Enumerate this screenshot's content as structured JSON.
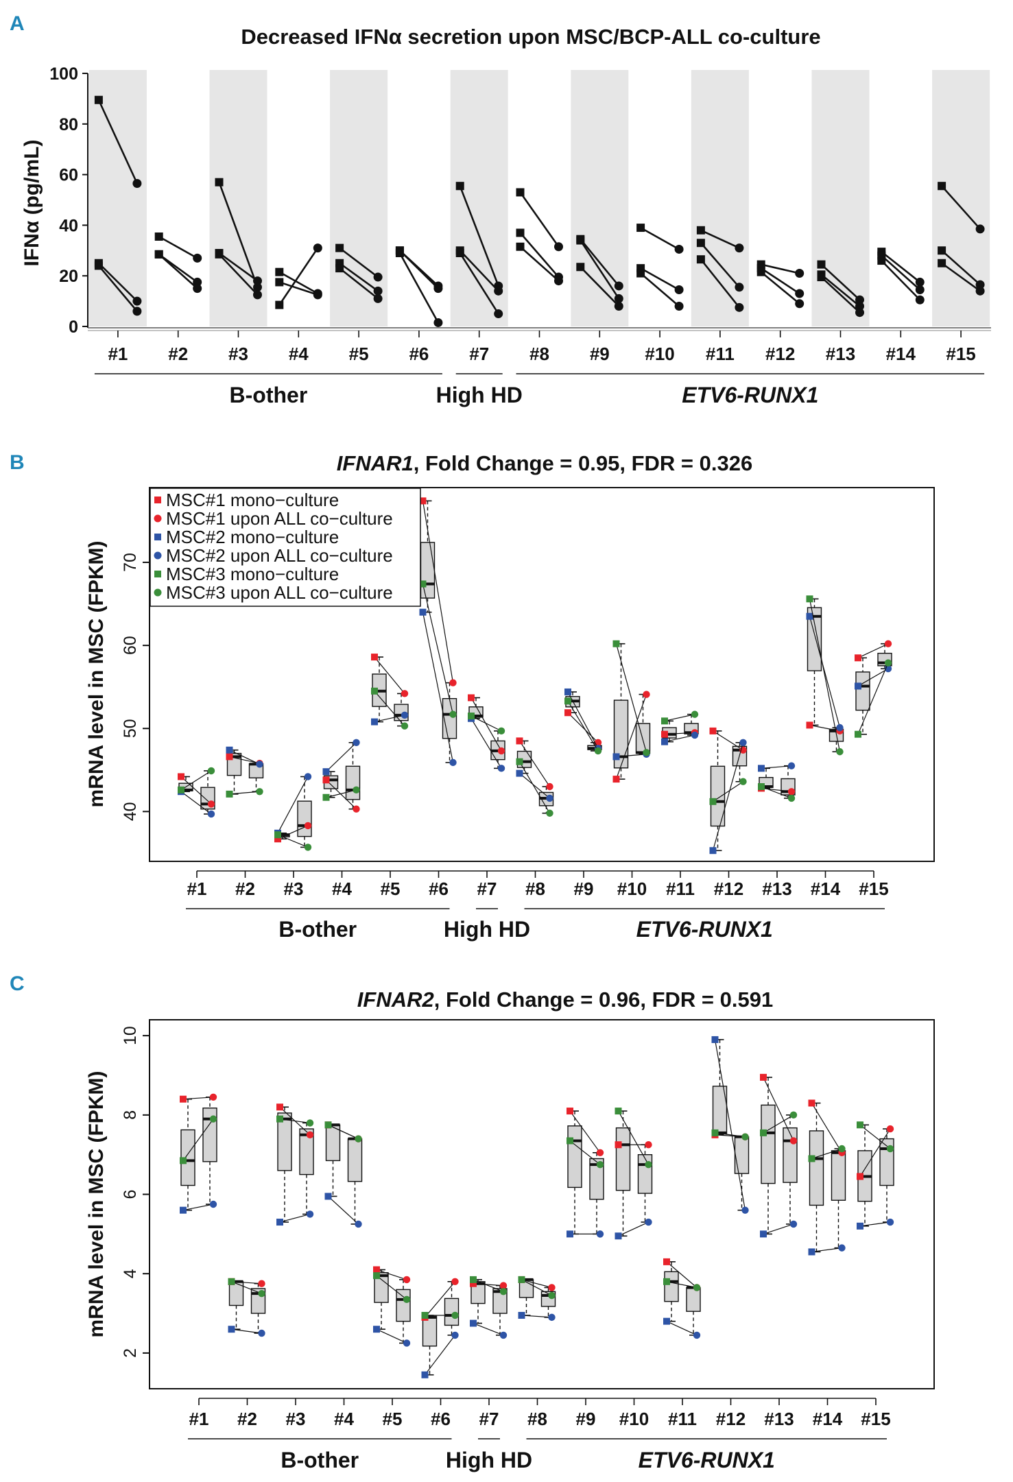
{
  "colors": {
    "red": "#e8232b",
    "blue": "#2e54a6",
    "green": "#3a8e3a",
    "box_fill": "#d4d4d4",
    "shade": "#e6e6e6",
    "panel_letter": "#1f86b8"
  },
  "legend": [
    {
      "label": "MSC#1 mono−culture",
      "color": "#e8232b",
      "shape": "square"
    },
    {
      "label": "MSC#1 upon ALL co−culture",
      "color": "#e8232b",
      "shape": "circle"
    },
    {
      "label": "MSC#2 mono−culture",
      "color": "#2e54a6",
      "shape": "square"
    },
    {
      "label": "MSC#2 upon ALL co−culture",
      "color": "#2e54a6",
      "shape": "circle"
    },
    {
      "label": "MSC#3 mono−culture",
      "color": "#3a8e3a",
      "shape": "square"
    },
    {
      "label": "MSC#3 upon ALL co−culture",
      "color": "#3a8e3a",
      "shape": "circle"
    }
  ],
  "chart_data": [
    {
      "panel": "A",
      "type": "line",
      "title": "Decreased IFNα secretion upon MSC/BCP-ALL co-culture",
      "ylabel": "IFNα (pg/mL)",
      "ylim": [
        0,
        100
      ],
      "yticks": [
        0,
        20,
        40,
        60,
        80,
        100
      ],
      "categories": [
        "#1",
        "#2",
        "#3",
        "#4",
        "#5",
        "#6",
        "#7",
        "#8",
        "#9",
        "#10",
        "#11",
        "#12",
        "#13",
        "#14",
        "#15"
      ],
      "groups": [
        {
          "label": "B-other",
          "italic": false,
          "from": 0,
          "to": 5
        },
        {
          "label": "High HD",
          "italic": false,
          "from": 6,
          "to": 6
        },
        {
          "label": "ETV6-RUNX1",
          "italic": true,
          "from": 7,
          "to": 14
        }
      ],
      "pairs": [
        [
          [
            89.5,
            56.5
          ],
          [
            25,
            10
          ],
          [
            24,
            6
          ]
        ],
        [
          [
            35.5,
            27
          ],
          [
            28.5,
            17.5
          ],
          [
            28.5,
            15
          ]
        ],
        [
          [
            57,
            15.5
          ],
          [
            29,
            18
          ],
          [
            28.5,
            12.5
          ]
        ],
        [
          [
            21.5,
            13
          ],
          [
            17.5,
            12.5
          ],
          [
            8.5,
            31
          ]
        ],
        [
          [
            31,
            19.5
          ],
          [
            25,
            14
          ],
          [
            23,
            11
          ]
        ],
        [
          [
            30,
            16
          ],
          [
            30,
            15
          ],
          [
            29,
            1.5
          ]
        ],
        [
          [
            55.5,
            16
          ],
          [
            30,
            14
          ],
          [
            29,
            5
          ]
        ],
        [
          [
            53,
            31.5
          ],
          [
            37,
            19.5
          ],
          [
            31.5,
            18
          ]
        ],
        [
          [
            34.5,
            16
          ],
          [
            34,
            11
          ],
          [
            23.5,
            8
          ]
        ],
        [
          [
            39,
            30.5
          ],
          [
            23,
            14.5
          ],
          [
            21,
            8
          ]
        ],
        [
          [
            38,
            31
          ],
          [
            33,
            15.5
          ],
          [
            26.5,
            7.5
          ]
        ],
        [
          [
            24.5,
            21
          ],
          [
            23,
            13
          ],
          [
            21.5,
            9
          ]
        ],
        [
          [
            24.5,
            10.5
          ],
          [
            20.5,
            8
          ],
          [
            19.5,
            5.5
          ]
        ],
        [
          [
            29.5,
            17.5
          ],
          [
            28,
            14.5
          ],
          [
            26,
            10.5
          ]
        ],
        [
          [
            55.5,
            38.5
          ],
          [
            30,
            16.5
          ],
          [
            25,
            14
          ]
        ]
      ]
    },
    {
      "panel": "B",
      "type": "box",
      "title_gene": "IFNAR1",
      "title_rest": ", Fold Change = 0.95, FDR = 0.326",
      "ylabel": "mRNA level in MSC (FPKM)",
      "ylim": [
        34,
        79
      ],
      "yticks": [
        40,
        50,
        60,
        70
      ],
      "categories": [
        "#1",
        "#2",
        "#3",
        "#4",
        "#5",
        "#6",
        "#7",
        "#8",
        "#9",
        "#10",
        "#11",
        "#12",
        "#13",
        "#14",
        "#15"
      ],
      "groups": [
        {
          "label": "B-other",
          "italic": false,
          "from": 0,
          "to": 5
        },
        {
          "label": "High HD",
          "italic": false,
          "from": 6,
          "to": 6
        },
        {
          "label": "ETV6-RUNX1",
          "italic": true,
          "from": 7,
          "to": 14
        }
      ],
      "mono": [
        [
          44.2,
          42.4,
          42.6
        ],
        [
          46.6,
          47.4,
          42.1
        ],
        [
          36.7,
          37.4,
          37.2
        ],
        [
          43.8,
          44.8,
          41.7
        ],
        [
          58.6,
          50.8,
          54.5
        ],
        [
          77.4,
          64.0,
          67.4
        ],
        [
          53.7,
          51.2,
          51.5
        ],
        [
          48.5,
          44.6,
          46.0
        ],
        [
          51.9,
          54.4,
          53.3
        ],
        [
          43.9,
          46.6,
          60.2
        ],
        [
          49.3,
          48.4,
          50.9
        ],
        [
          49.7,
          35.3,
          41.2
        ],
        [
          42.8,
          45.2,
          43.0
        ],
        [
          50.4,
          63.5,
          65.6
        ],
        [
          58.5,
          55.1,
          49.3
        ]
      ],
      "co": [
        [
          40.9,
          39.7,
          44.9
        ],
        [
          45.8,
          45.7,
          42.4
        ],
        [
          38.3,
          44.2,
          35.7
        ],
        [
          40.3,
          48.3,
          42.6
        ],
        [
          54.2,
          51.6,
          50.3
        ],
        [
          55.5,
          45.9,
          51.7
        ],
        [
          47.3,
          45.2,
          49.7
        ],
        [
          43.0,
          41.6,
          39.8
        ],
        [
          48.3,
          47.6,
          47.3
        ],
        [
          54.1,
          46.9,
          47.1
        ],
        [
          49.5,
          49.2,
          51.7
        ],
        [
          47.4,
          48.3,
          43.6
        ],
        [
          42.4,
          45.5,
          41.6
        ],
        [
          49.7,
          50.1,
          47.2
        ],
        [
          60.2,
          57.2,
          57.9
        ]
      ]
    },
    {
      "panel": "C",
      "type": "box",
      "title_gene": "IFNAR2",
      "title_rest": ", Fold Change = 0.96, FDR = 0.591",
      "ylabel": "mRNA level in MSC (FPKM)",
      "ylim": [
        1.1,
        10.4
      ],
      "yticks": [
        2,
        4,
        6,
        8,
        10
      ],
      "categories": [
        "#1",
        "#2",
        "#3",
        "#4",
        "#5",
        "#6",
        "#7",
        "#8",
        "#9",
        "#10",
        "#11",
        "#12",
        "#13",
        "#14",
        "#15"
      ],
      "groups": [
        {
          "label": "B-other",
          "italic": false,
          "from": 0,
          "to": 5
        },
        {
          "label": "High HD",
          "italic": false,
          "from": 6,
          "to": 6
        },
        {
          "label": "ETV6-RUNX1",
          "italic": true,
          "from": 7,
          "to": 14
        }
      ],
      "mono": [
        [
          8.4,
          5.6,
          6.85
        ],
        [
          3.8,
          2.6,
          3.8
        ],
        [
          8.2,
          5.3,
          7.9
        ],
        [
          7.75,
          5.95,
          7.75
        ],
        [
          4.1,
          2.6,
          3.95
        ],
        [
          2.9,
          1.45,
          2.95
        ],
        [
          3.75,
          2.75,
          3.85
        ],
        [
          3.85,
          2.95,
          3.85
        ],
        [
          8.1,
          5.0,
          7.35
        ],
        [
          7.25,
          4.95,
          8.1
        ],
        [
          4.3,
          2.8,
          3.8
        ],
        [
          7.5,
          9.9,
          7.55
        ],
        [
          8.95,
          5.0,
          7.55
        ],
        [
          8.3,
          4.55,
          6.9
        ],
        [
          6.45,
          5.2,
          7.75
        ]
      ],
      "co": [
        [
          8.45,
          5.75,
          7.9
        ],
        [
          3.75,
          2.5,
          3.5
        ],
        [
          7.5,
          5.5,
          7.8
        ],
        [
          7.4,
          5.25,
          7.4
        ],
        [
          3.85,
          2.25,
          3.35
        ],
        [
          3.8,
          2.45,
          2.95
        ],
        [
          3.7,
          2.45,
          3.55
        ],
        [
          3.65,
          2.9,
          3.45
        ],
        [
          7.05,
          5.0,
          6.75
        ],
        [
          7.25,
          5.3,
          6.75
        ],
        [
          3.65,
          2.45,
          3.65
        ],
        [
          7.45,
          5.6,
          7.45
        ],
        [
          7.35,
          5.25,
          8.0
        ],
        [
          7.05,
          4.65,
          7.15
        ],
        [
          7.65,
          5.3,
          7.15
        ]
      ]
    }
  ]
}
